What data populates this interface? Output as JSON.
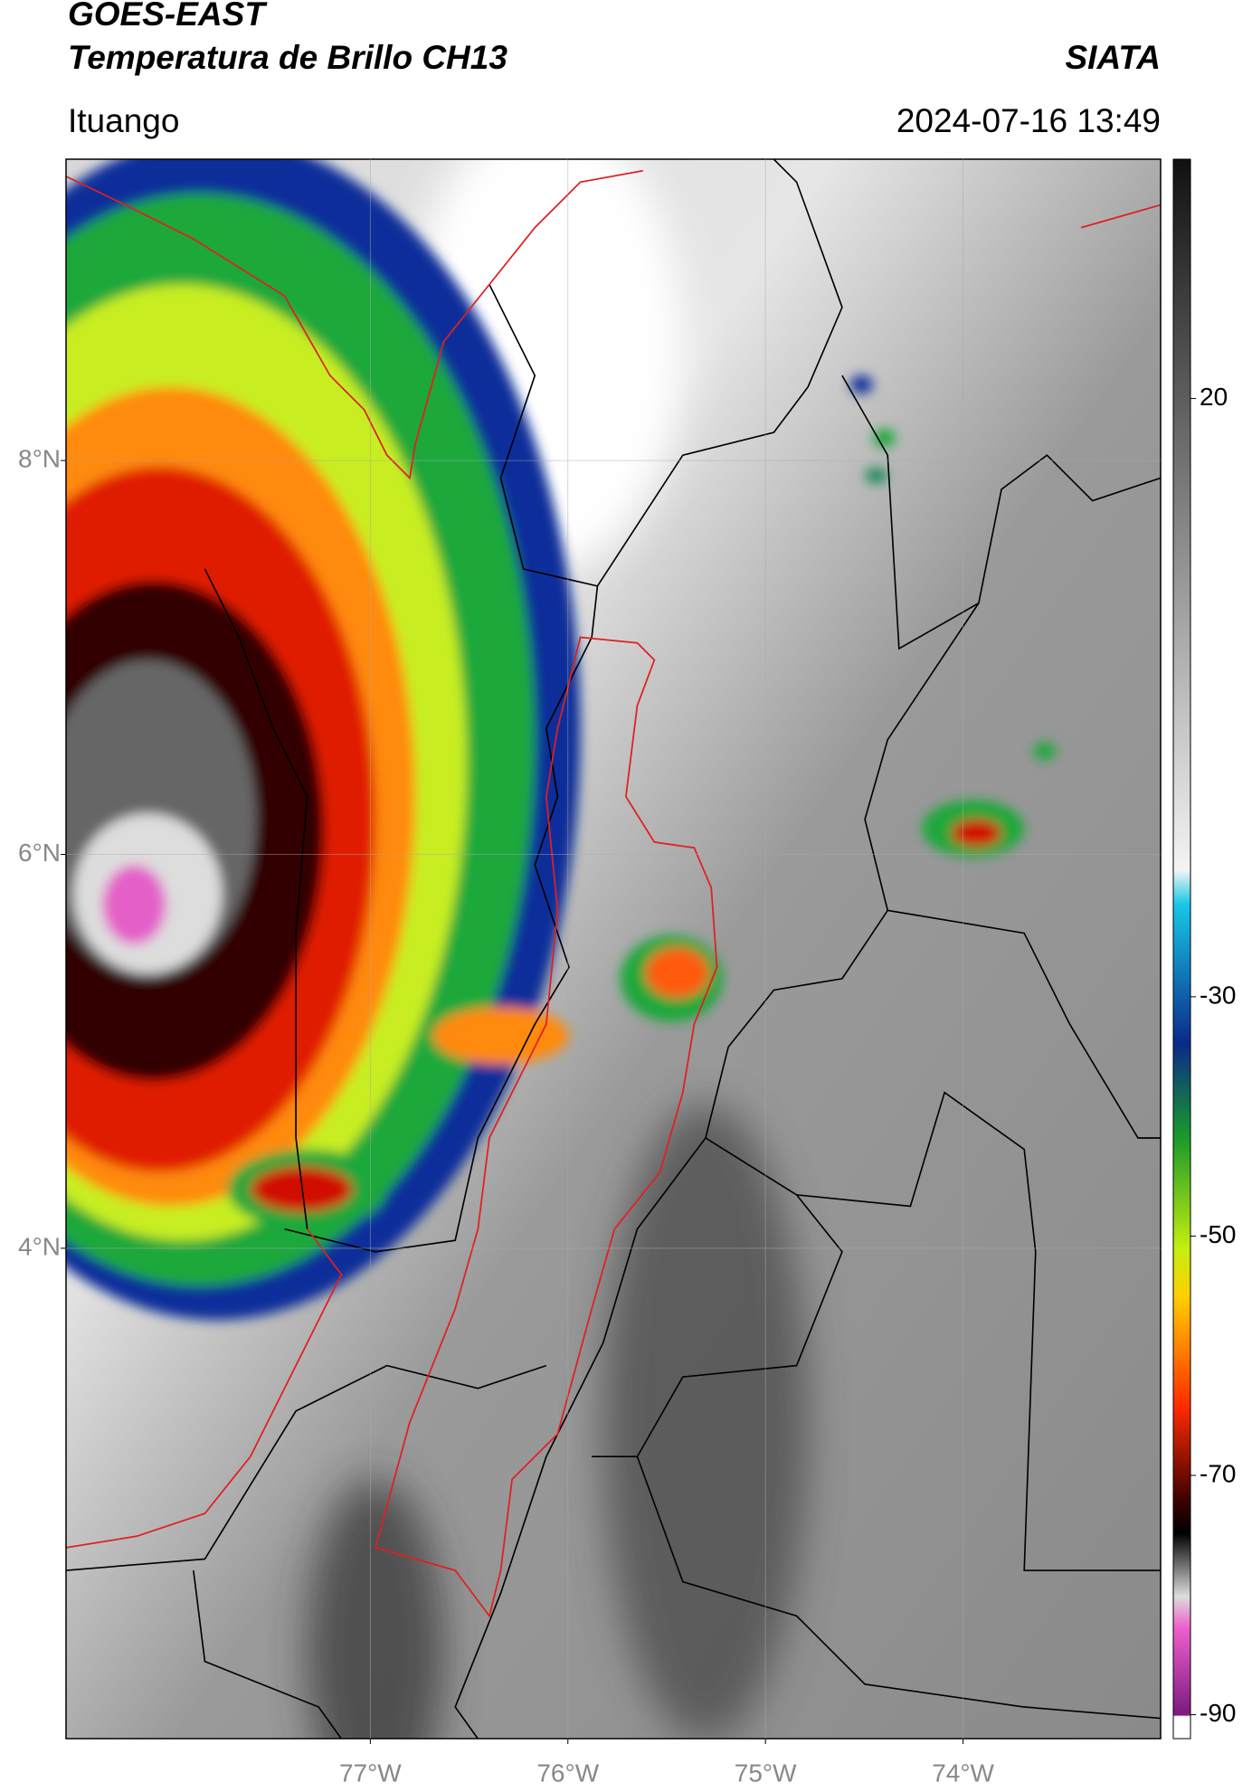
{
  "header": {
    "title": "GOES-EAST",
    "subtitle": "Temperatura de Brillo CH13",
    "source": "SIATA",
    "location": "Ituango",
    "datetime": "2024-07-16 13:49"
  },
  "map": {
    "xlim": [
      -78.54,
      -73.0
    ],
    "ylim": [
      1.51,
      9.53
    ],
    "xticks": [
      {
        "value": -77,
        "label": "77°W"
      },
      {
        "value": -76,
        "label": "76°W"
      },
      {
        "value": -75,
        "label": "75°W"
      },
      {
        "value": -74,
        "label": "74°W"
      }
    ],
    "yticks": [
      {
        "value": 4,
        "label": "4°N"
      },
      {
        "value": 6,
        "label": "6°N"
      },
      {
        "value": 8,
        "label": "8°N"
      }
    ],
    "grid": true
  },
  "colorbar": {
    "lim": [
      -92,
      40
    ],
    "ticks": [
      20,
      -30,
      -50,
      -70,
      -90
    ]
  }
}
